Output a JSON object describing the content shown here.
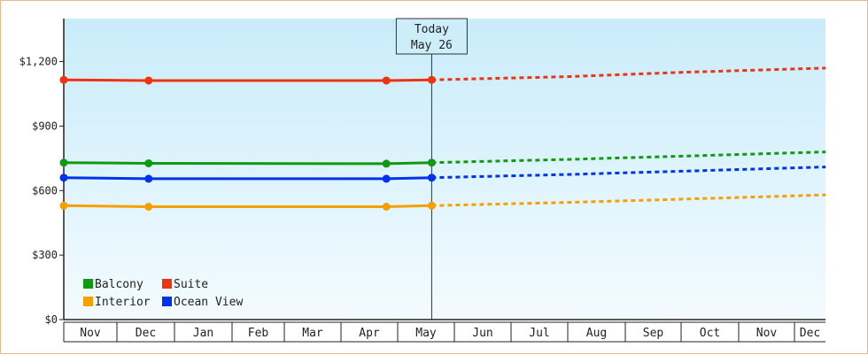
{
  "chart_data": {
    "type": "line",
    "x": [
      "Nov",
      "Dec",
      "Jan",
      "Feb",
      "Mar",
      "Apr",
      "May",
      "Jun",
      "Jul",
      "Aug",
      "Sep",
      "Oct",
      "Nov",
      "Dec"
    ],
    "yticks": [
      "$0",
      "$300",
      "$600",
      "$900",
      "$1,200"
    ],
    "ylim": [
      0,
      1400
    ],
    "today": {
      "line1": "Today",
      "line2": "May 26",
      "x": 6.6
    },
    "legend_placement": "bottom-left",
    "grid": false,
    "series": [
      {
        "name": "Suite",
        "color": "#ee3311",
        "actual": [
          [
            0,
            1115
          ],
          [
            1.55,
            1112
          ],
          [
            5.8,
            1112
          ],
          [
            6.6,
            1115
          ]
        ],
        "forecast": [
          [
            6.6,
            1115
          ],
          [
            9,
            1130
          ],
          [
            11,
            1150
          ],
          [
            13.55,
            1170
          ]
        ]
      },
      {
        "name": "Balcony",
        "color": "#119911",
        "actual": [
          [
            0,
            730
          ],
          [
            1.55,
            727
          ],
          [
            5.8,
            725
          ],
          [
            6.6,
            730
          ]
        ],
        "forecast": [
          [
            6.6,
            730
          ],
          [
            9,
            745
          ],
          [
            11,
            760
          ],
          [
            13.55,
            780
          ]
        ]
      },
      {
        "name": "Ocean View",
        "color": "#0033ee",
        "actual": [
          [
            0,
            660
          ],
          [
            1.55,
            655
          ],
          [
            5.8,
            655
          ],
          [
            6.6,
            660
          ]
        ],
        "forecast": [
          [
            6.6,
            660
          ],
          [
            9,
            675
          ],
          [
            11,
            690
          ],
          [
            13.55,
            710
          ]
        ]
      },
      {
        "name": "Interior",
        "color": "#f5a000",
        "actual": [
          [
            0,
            530
          ],
          [
            1.55,
            525
          ],
          [
            5.8,
            525
          ],
          [
            6.6,
            530
          ]
        ],
        "forecast": [
          [
            6.6,
            530
          ],
          [
            9,
            545
          ],
          [
            11,
            560
          ],
          [
            13.55,
            580
          ]
        ]
      }
    ],
    "markers": [
      {
        "series": 0,
        "x": 0,
        "y": 1115
      },
      {
        "series": 0,
        "x": 1.55,
        "y": 1112
      },
      {
        "series": 0,
        "x": 5.8,
        "y": 1112
      },
      {
        "series": 0,
        "x": 6.6,
        "y": 1115
      },
      {
        "series": 1,
        "x": 0,
        "y": 730
      },
      {
        "series": 1,
        "x": 1.55,
        "y": 727
      },
      {
        "series": 1,
        "x": 5.8,
        "y": 725
      },
      {
        "series": 1,
        "x": 6.6,
        "y": 730
      },
      {
        "series": 2,
        "x": 0,
        "y": 660
      },
      {
        "series": 2,
        "x": 1.55,
        "y": 655
      },
      {
        "series": 2,
        "x": 5.8,
        "y": 655
      },
      {
        "series": 2,
        "x": 6.6,
        "y": 660
      },
      {
        "series": 3,
        "x": 0,
        "y": 530
      },
      {
        "series": 3,
        "x": 1.55,
        "y": 525
      },
      {
        "series": 3,
        "x": 5.8,
        "y": 525
      },
      {
        "series": 3,
        "x": 6.6,
        "y": 530
      }
    ],
    "legend": [
      "Balcony",
      "Suite",
      "Interior",
      "Ocean View"
    ]
  }
}
